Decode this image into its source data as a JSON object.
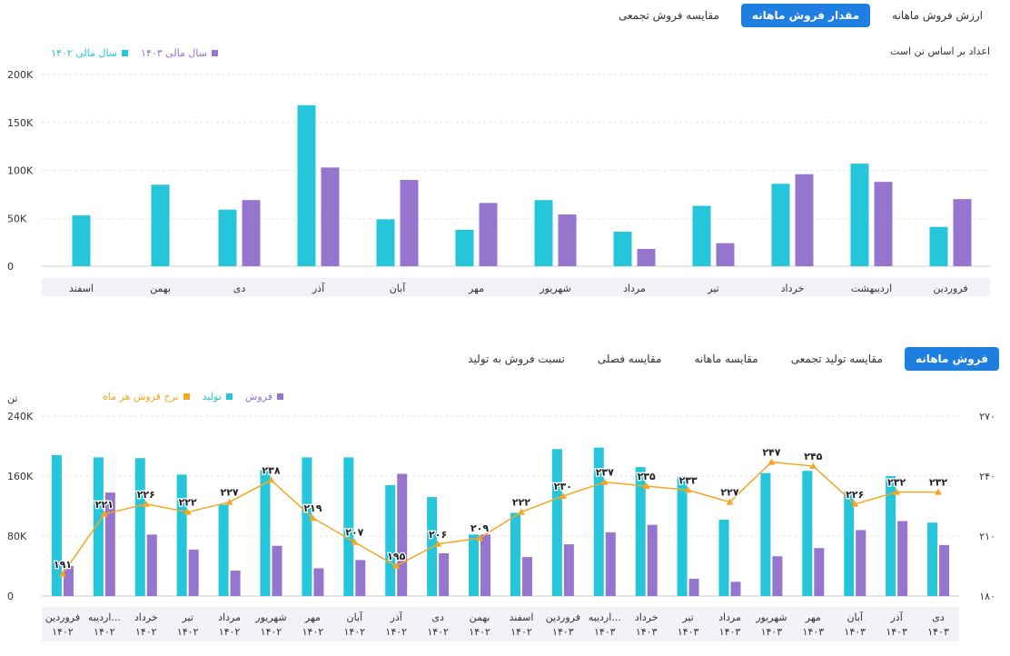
{
  "top_tabs": [
    {
      "label": "ارزش فروش ماهانه",
      "active": false
    },
    {
      "label": "مقدار فروش ماهانه",
      "active": true
    },
    {
      "label": "مقایسه فروش تجمعی",
      "active": false
    }
  ],
  "unit_note": "اعداد بر اساس تن است",
  "bottom_tabs": [
    {
      "label": "فروش ماهانه",
      "active": true
    },
    {
      "label": "مقایسه تولید تجمعی",
      "active": false
    },
    {
      "label": "مقایسه ماهانه",
      "active": false
    },
    {
      "label": "مقایسه فصلی",
      "active": false
    },
    {
      "label": "نسبت فروش به تولید",
      "active": false
    }
  ],
  "bottom_left_unit": "تن",
  "colors": {
    "teal": "#26c6da",
    "purple": "#9575cd",
    "orange": "#f5a623",
    "accent": "#1f7fe0"
  },
  "chart_data": [
    {
      "type": "bar",
      "categories": [
        "فروردین",
        "اردیبهشت",
        "خرداد",
        "تیر",
        "مرداد",
        "شهریور",
        "مهر",
        "آبان",
        "آذر",
        "دی",
        "بهمن",
        "اسفند"
      ],
      "series": [
        {
          "name": "سال مالی ۱۴۰۲",
          "color": "#26c6da",
          "values": [
            41000,
            107000,
            86000,
            63000,
            36000,
            69000,
            38000,
            49000,
            168000,
            59000,
            85000,
            53000
          ]
        },
        {
          "name": "سال مالی ۱۴۰۳",
          "color": "#9575cd",
          "values": [
            70000,
            88000,
            96000,
            24000,
            18000,
            54000,
            66000,
            90000,
            103000,
            69000,
            null,
            null
          ]
        }
      ],
      "y_ticks": [
        "0",
        "50K",
        "100K",
        "150K",
        "200K"
      ],
      "ylim": [
        0,
        200000
      ],
      "legend": "top-right",
      "grid": true
    },
    {
      "type": "bar+line",
      "categories": [
        [
          "فروردین",
          "۱۴۰۲"
        ],
        [
          "اردیبه...",
          "۱۴۰۲"
        ],
        [
          "خرداد",
          "۱۴۰۲"
        ],
        [
          "تیر",
          "۱۴۰۲"
        ],
        [
          "مرداد",
          "۱۴۰۲"
        ],
        [
          "شهریور",
          "۱۴۰۲"
        ],
        [
          "مهر",
          "۱۴۰۲"
        ],
        [
          "آبان",
          "۱۴۰۲"
        ],
        [
          "آذر",
          "۱۴۰۲"
        ],
        [
          "دی",
          "۱۴۰۲"
        ],
        [
          "بهمن",
          "۱۴۰۲"
        ],
        [
          "اسفند",
          "۱۴۰۲"
        ],
        [
          "فروردین",
          "۱۴۰۳"
        ],
        [
          "اردیبه...",
          "۱۴۰۳"
        ],
        [
          "خرداد",
          "۱۴۰۳"
        ],
        [
          "تیر",
          "۱۴۰۳"
        ],
        [
          "مرداد",
          "۱۴۰۳"
        ],
        [
          "شهریور",
          "۱۴۰۳"
        ],
        [
          "مهر",
          "۱۴۰۳"
        ],
        [
          "آبان",
          "۱۴۰۳"
        ],
        [
          "آذر",
          "۱۴۰۳"
        ],
        [
          "دی",
          "۱۴۰۳"
        ]
      ],
      "series": [
        {
          "name": "فروش",
          "color": "#9575cd",
          "axis": "left",
          "values": [
            40000,
            138000,
            82000,
            62000,
            34000,
            67000,
            37000,
            48000,
            163000,
            57000,
            82000,
            52000,
            69000,
            85000,
            95000,
            23000,
            19000,
            53000,
            64000,
            88000,
            100000,
            68000
          ]
        },
        {
          "name": "تولید",
          "color": "#26c6da",
          "axis": "left",
          "values": [
            188000,
            185000,
            184000,
            162000,
            122000,
            168000,
            185000,
            185000,
            148000,
            132000,
            82000,
            111000,
            196000,
            198000,
            172000,
            160000,
            102000,
            164000,
            167000,
            140000,
            160000,
            98000
          ]
        },
        {
          "name": "نرخ فروش هر ماه",
          "color": "#f5a623",
          "axis": "right",
          "values": [
            191,
            221,
            226,
            222,
            227,
            238,
            219,
            207,
            195,
            206,
            209,
            222,
            230,
            237,
            235,
            233,
            227,
            247,
            245,
            226,
            232,
            232
          ],
          "labels": [
            "۱۹۱",
            "۲۲۱",
            "۲۲۶",
            "۲۲۲",
            "۲۲۷",
            "۲۳۸",
            "۲۱۹",
            "۲۰۷",
            "۱۹۵",
            "۲۰۶",
            "۲۰۹",
            "۲۲۲",
            "۲۳۰",
            "۲۳۷",
            "۲۳۵",
            "۲۳۳",
            "۲۲۷",
            "۲۴۷",
            "۲۴۵",
            "۲۲۶",
            "۲۳۲",
            "۲۳۲"
          ]
        }
      ],
      "left_ticks": [
        "0",
        "80K",
        "160K",
        "240K"
      ],
      "ylim_left": [
        0,
        240000
      ],
      "right_ticks": [
        "۱۸۰",
        "۲۱۰",
        "۲۴۰",
        "۲۷۰"
      ],
      "ylim_right": [
        180,
        270
      ],
      "legend": "top-right",
      "grid": true
    }
  ]
}
